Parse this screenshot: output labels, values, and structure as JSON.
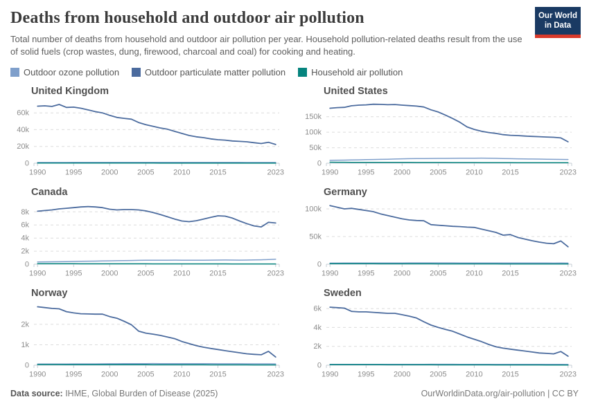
{
  "header": {
    "title": "Deaths from household and outdoor air pollution",
    "subtitle": "Total number of deaths from household and outdoor air pollution per year. Household pollution-related deaths result from the use of solid fuels (crop wastes, dung, firewood, charcoal and coal) for cooking and heating.",
    "logo_line1": "Our World",
    "logo_line2": "in Data",
    "logo_bg_color": "#1a3a63",
    "logo_accent_color": "#d93a2b"
  },
  "footer": {
    "source_label": "Data source:",
    "source_text": " IHME, Global Burden of Disease (2025)",
    "credit": "OurWorldinData.org/air-pollution | CC BY"
  },
  "chart_data": {
    "type": "line",
    "year_start": 1990,
    "year_end": 2023,
    "x_ticks": [
      1990,
      1995,
      2000,
      2005,
      2010,
      2015,
      2023
    ],
    "grid": "horizontal dashed",
    "legend_position": "top",
    "series_order": [
      "ozone",
      "pm",
      "household"
    ],
    "series_meta": {
      "ozone": {
        "name": "Outdoor ozone pollution",
        "color": "#7f9fcb"
      },
      "pm": {
        "name": "Outdoor particulate matter pollution",
        "color": "#4b6b9e"
      },
      "household": {
        "name": "Household air pollution",
        "color": "#06847e"
      }
    },
    "panels": [
      {
        "title": "United Kingdom",
        "ylim": [
          0,
          72500
        ],
        "y_ticks": [
          {
            "v": 0,
            "label": "0"
          },
          {
            "v": 20000,
            "label": "20k"
          },
          {
            "v": 40000,
            "label": "40k"
          },
          {
            "v": 60000,
            "label": "60k"
          }
        ],
        "series": {
          "pm": [
            68000,
            68400,
            67600,
            70000,
            66500,
            66800,
            65500,
            63500,
            61500,
            60000,
            57000,
            54500,
            53500,
            52500,
            48500,
            46000,
            44000,
            42000,
            40500,
            38000,
            35500,
            33000,
            31500,
            30500,
            29000,
            28000,
            27500,
            26500,
            26000,
            25500,
            24500,
            23500,
            25000,
            22300
          ],
          "ozone": [
            900,
            910,
            920,
            930,
            940,
            950,
            960,
            970,
            980,
            990,
            1000,
            1010,
            1030,
            1050,
            1070,
            1080,
            1090,
            1100,
            1090,
            1080,
            1060,
            1040,
            1020,
            1000,
            990,
            980,
            970,
            960,
            950,
            940,
            930,
            920,
            930,
            910
          ],
          "household": [
            200,
            195,
            190,
            185,
            180,
            175,
            170,
            165,
            160,
            155,
            150,
            146,
            142,
            138,
            134,
            130,
            126,
            122,
            118,
            114,
            110,
            107,
            104,
            101,
            98,
            95,
            92,
            90,
            88,
            86,
            84,
            82,
            80,
            78
          ]
        }
      },
      {
        "title": "United States",
        "ylim": [
          0,
          196000
        ],
        "y_ticks": [
          {
            "v": 0,
            "label": "0"
          },
          {
            "v": 50000,
            "label": "50k"
          },
          {
            "v": 100000,
            "label": "100k"
          },
          {
            "v": 150000,
            "label": "150k"
          }
        ],
        "series": {
          "pm": [
            177000,
            179000,
            180000,
            185000,
            187000,
            188000,
            190000,
            189500,
            188500,
            189000,
            187000,
            185500,
            184000,
            181000,
            172000,
            165000,
            155000,
            144000,
            132000,
            117000,
            109000,
            103000,
            99000,
            96000,
            92000,
            90000,
            89000,
            87500,
            86500,
            85500,
            84500,
            83500,
            81500,
            69000
          ],
          "ozone": [
            9500,
            9800,
            10100,
            10500,
            11000,
            11500,
            12000,
            12500,
            13000,
            13600,
            14200,
            14600,
            15000,
            15200,
            15400,
            15500,
            15600,
            15800,
            16000,
            16100,
            16200,
            16500,
            16200,
            15800,
            15200,
            14600,
            14200,
            13800,
            13500,
            13300,
            12800,
            12500,
            12300,
            12000
          ],
          "household": [
            3300,
            3200,
            3100,
            3000,
            2950,
            2900,
            2850,
            2800,
            2750,
            2700,
            2650,
            2600,
            2550,
            2500,
            2450,
            2400,
            2350,
            2300,
            2250,
            2200,
            2150,
            2100,
            2050,
            2000,
            1950,
            1900,
            1850,
            1800,
            1750,
            1700,
            1650,
            1600,
            1550,
            1500
          ]
        }
      },
      {
        "title": "Canada",
        "ylim": [
          0,
          9300
        ],
        "y_ticks": [
          {
            "v": 0,
            "label": "0"
          },
          {
            "v": 2000,
            "label": "2k"
          },
          {
            "v": 4000,
            "label": "4k"
          },
          {
            "v": 6000,
            "label": "6k"
          },
          {
            "v": 8000,
            "label": "8k"
          }
        ],
        "series": {
          "pm": [
            8100,
            8200,
            8300,
            8450,
            8550,
            8650,
            8750,
            8800,
            8750,
            8650,
            8400,
            8300,
            8350,
            8350,
            8300,
            8150,
            7900,
            7600,
            7250,
            6900,
            6600,
            6500,
            6650,
            6900,
            7150,
            7400,
            7350,
            7050,
            6600,
            6200,
            5850,
            5700,
            6400,
            6300
          ],
          "ozone": [
            340,
            355,
            370,
            385,
            400,
            420,
            440,
            460,
            480,
            500,
            520,
            540,
            560,
            575,
            590,
            600,
            605,
            610,
            615,
            620,
            610,
            600,
            605,
            615,
            625,
            635,
            640,
            630,
            620,
            630,
            650,
            680,
            720,
            760
          ],
          "household": [
            80,
            78,
            76,
            74,
            72,
            70,
            68,
            67,
            66,
            65,
            64,
            63,
            62,
            61,
            60,
            59,
            58,
            57,
            56,
            55,
            54,
            53,
            52,
            51,
            50,
            49,
            48,
            47,
            46,
            45,
            44,
            43,
            42,
            41
          ]
        }
      },
      {
        "title": "Germany",
        "ylim": [
          0,
          110000
        ],
        "y_ticks": [
          {
            "v": 0,
            "label": "0"
          },
          {
            "v": 50000,
            "label": "50k"
          },
          {
            "v": 100000,
            "label": "100k"
          }
        ],
        "series": {
          "pm": [
            106000,
            103000,
            100000,
            101000,
            99000,
            97000,
            95000,
            91000,
            88000,
            85000,
            82000,
            80000,
            79000,
            78500,
            71500,
            70500,
            69500,
            68500,
            68000,
            67000,
            66500,
            63500,
            60500,
            57500,
            52500,
            53500,
            48500,
            45500,
            42500,
            40000,
            38000,
            37000,
            42000,
            31500
          ],
          "ozone": [
            2000,
            2050,
            2100,
            2120,
            2150,
            2170,
            2200,
            2220,
            2250,
            2270,
            2300,
            2320,
            2350,
            2380,
            2360,
            2340,
            2320,
            2340,
            2310,
            2280,
            2300,
            2260,
            2230,
            2260,
            2220,
            2250,
            2210,
            2170,
            2210,
            2160,
            2110,
            2060,
            2110,
            2010
          ],
          "household": [
            950,
            930,
            910,
            890,
            870,
            850,
            830,
            810,
            790,
            770,
            750,
            735,
            720,
            705,
            690,
            675,
            660,
            645,
            630,
            615,
            600,
            590,
            580,
            570,
            560,
            550,
            540,
            530,
            520,
            510,
            500,
            490,
            480,
            470
          ]
        }
      },
      {
        "title": "Norway",
        "ylim": [
          0,
          2980
        ],
        "y_ticks": [
          {
            "v": 0,
            "label": "0"
          },
          {
            "v": 1000,
            "label": "1k"
          },
          {
            "v": 2000,
            "label": "2k"
          }
        ],
        "series": {
          "pm": [
            2860,
            2820,
            2780,
            2760,
            2620,
            2560,
            2520,
            2510,
            2500,
            2500,
            2380,
            2300,
            2150,
            1980,
            1670,
            1570,
            1520,
            1460,
            1380,
            1300,
            1160,
            1060,
            960,
            880,
            820,
            770,
            710,
            660,
            610,
            560,
            530,
            510,
            680,
            400
          ],
          "ozone": [
            58,
            59,
            60,
            61,
            62,
            63,
            64,
            65,
            66,
            68,
            70,
            72,
            74,
            76,
            78,
            79,
            80,
            79,
            78,
            77,
            76,
            75,
            74,
            74,
            73,
            72,
            71,
            70,
            70,
            69,
            68,
            67,
            69,
            65
          ],
          "household": [
            30,
            30,
            29,
            29,
            28,
            28,
            27,
            27,
            26,
            26,
            25,
            25,
            24,
            24,
            23,
            23,
            22,
            22,
            21,
            21,
            20,
            20,
            19,
            19,
            18,
            18,
            17,
            17,
            16,
            16,
            15,
            15,
            14,
            14
          ]
        }
      },
      {
        "title": "Sweden",
        "ylim": [
          0,
          6450
        ],
        "y_ticks": [
          {
            "v": 0,
            "label": "0"
          },
          {
            "v": 2000,
            "label": "2k"
          },
          {
            "v": 4000,
            "label": "4k"
          },
          {
            "v": 6000,
            "label": "6k"
          }
        ],
        "series": {
          "pm": [
            6150,
            6100,
            6050,
            5700,
            5650,
            5650,
            5600,
            5550,
            5500,
            5500,
            5350,
            5200,
            5000,
            4600,
            4250,
            4000,
            3800,
            3600,
            3300,
            3000,
            2750,
            2500,
            2200,
            1950,
            1800,
            1700,
            1600,
            1500,
            1400,
            1300,
            1250,
            1200,
            1450,
            950
          ],
          "ozone": [
            85,
            86,
            87,
            88,
            89,
            90,
            91,
            92,
            93,
            94,
            95,
            96,
            97,
            98,
            99,
            100,
            100,
            99,
            98,
            97,
            96,
            95,
            94,
            93,
            92,
            91,
            90,
            89,
            88,
            87,
            86,
            85,
            86,
            84
          ],
          "household": [
            55,
            54,
            53,
            52,
            51,
            50,
            49,
            48,
            47,
            46,
            45,
            44,
            43,
            42,
            41,
            40,
            39,
            38,
            37,
            36,
            35,
            34,
            33,
            32,
            31,
            30,
            29,
            28,
            27,
            26,
            25,
            24,
            23,
            22
          ]
        }
      }
    ]
  }
}
